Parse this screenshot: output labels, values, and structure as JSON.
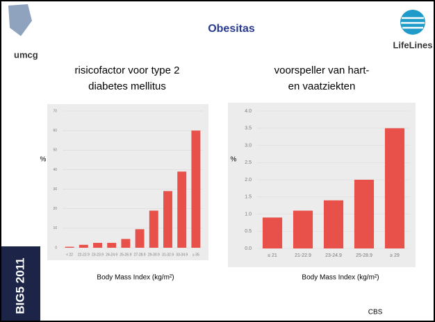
{
  "slide": {
    "title": "Obesitas",
    "logo_left": "umcg",
    "logo_right": "LifeLines",
    "side_label": "BIG5 2011",
    "source": "CBS"
  },
  "chart_data": [
    {
      "type": "bar",
      "title": [
        "risicofactor voor type 2",
        "diabetes mellitus"
      ],
      "ylabel": "%",
      "xlabel": "Body Mass Index (kg/m²)",
      "categories": [
        "< 22",
        "22-22.9",
        "23-23.9",
        "24-24.9",
        "25-26.9",
        "27-28.9",
        "29-30.9",
        "31-32.9",
        "33-34.9",
        "≥ 35"
      ],
      "values": [
        0.5,
        1.5,
        2.5,
        2.5,
        4.5,
        9.5,
        19,
        29,
        39,
        60
      ],
      "color": "#e8504a",
      "ylim": [
        0,
        70
      ],
      "yticks": [
        0,
        10,
        20,
        30,
        40,
        50,
        60,
        70
      ],
      "grid": true
    },
    {
      "type": "bar",
      "title": [
        "voorspeller van hart-",
        "en vaatziekten"
      ],
      "ylabel": "%",
      "xlabel": "Body Mass Index (kg/m²)",
      "categories": [
        "≤ 21",
        "21-22.9",
        "23-24.9",
        "25-28.9",
        "≥ 29"
      ],
      "values": [
        0.9,
        1.1,
        1.4,
        2.0,
        3.5
      ],
      "color": "#e8504a",
      "ylim": [
        0,
        4
      ],
      "yticks": [
        {
          "value": 0,
          "label": "0.0"
        },
        {
          "value": 0.5,
          "label": "0.5"
        },
        {
          "value": 1,
          "label": "1.0"
        },
        {
          "value": 1.5,
          "label": "1.5"
        },
        {
          "value": 2,
          "label": "2.0"
        },
        {
          "value": 2.5,
          "label": "2.5"
        },
        {
          "value": 3,
          "label": "3.0"
        },
        {
          "value": 3.5,
          "label": "3.5"
        },
        {
          "value": 4,
          "label": "4.0"
        }
      ],
      "grid": true
    }
  ]
}
